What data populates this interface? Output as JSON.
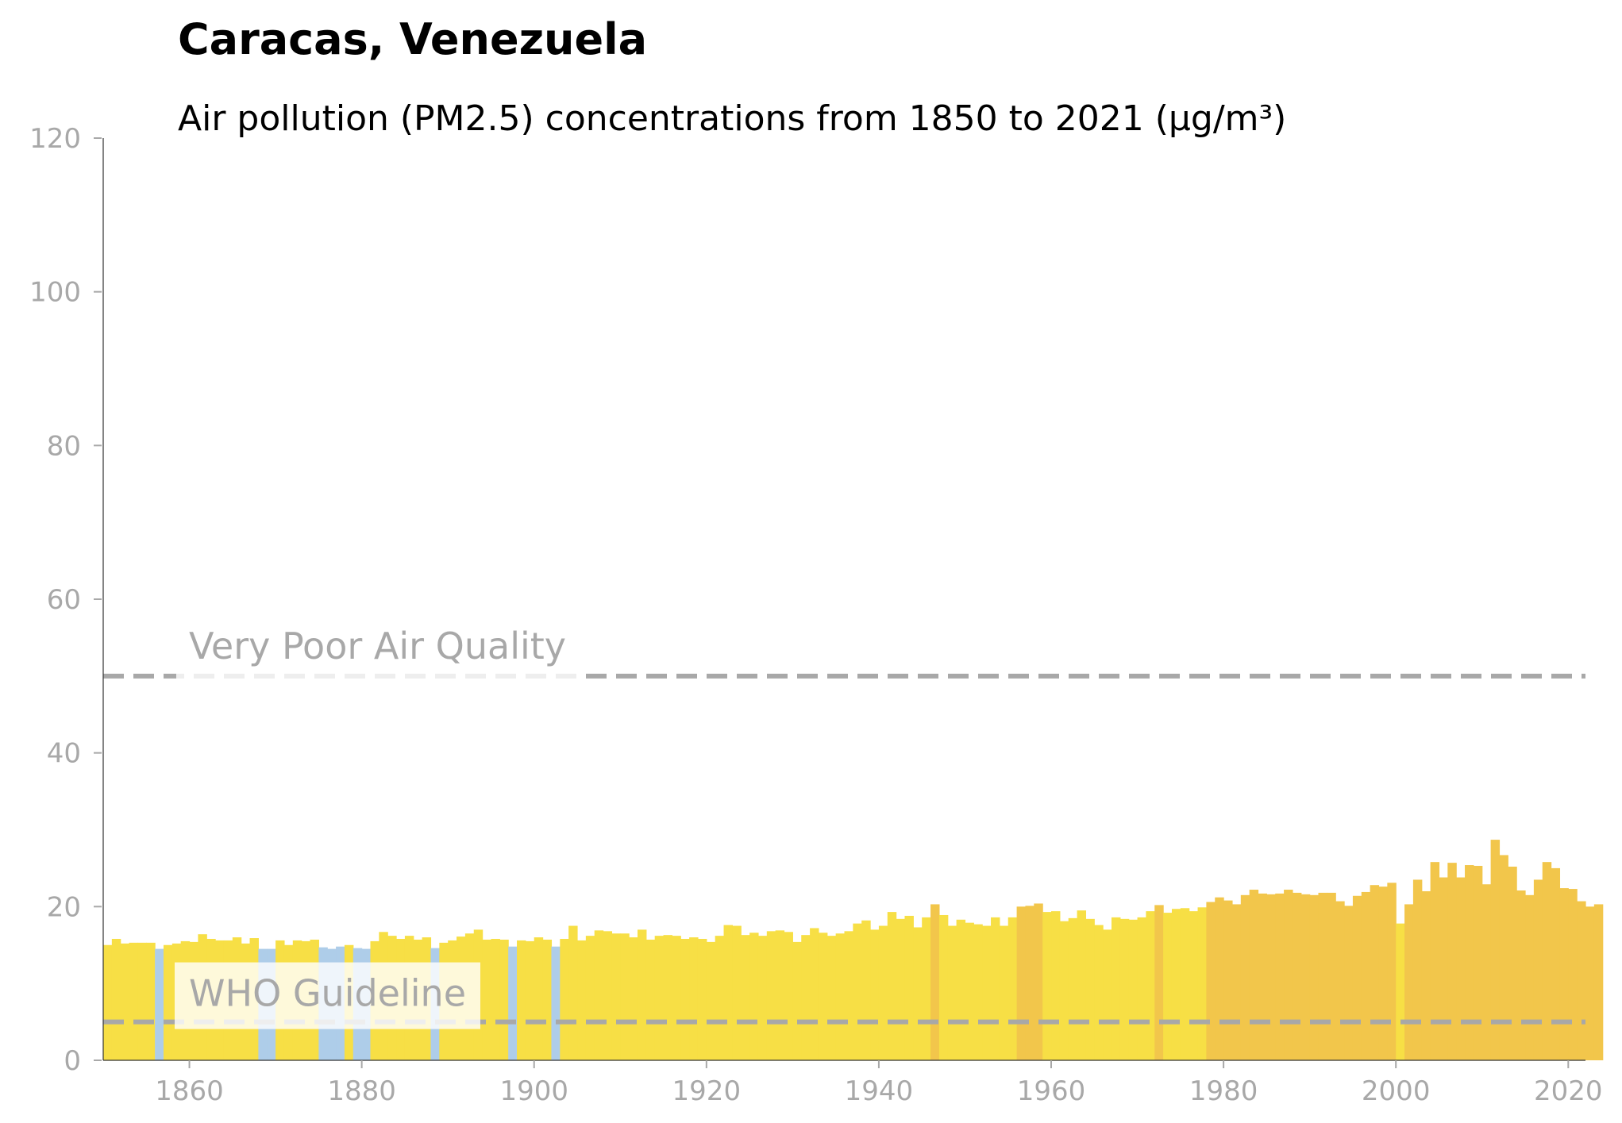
{
  "chart_data": {
    "type": "bar",
    "title": "Caracas, Venezuela",
    "subtitle": "Air pollution (PM2.5) concentrations from 1850 to 2021 (µg/m³)",
    "xlabel": "",
    "ylabel": "",
    "xlim": [
      1850,
      2022
    ],
    "ylim": [
      0,
      120
    ],
    "x_ticks": [
      1860,
      1880,
      1900,
      1920,
      1940,
      1960,
      1980,
      2000,
      2020
    ],
    "y_ticks": [
      0,
      20,
      40,
      60,
      80,
      100,
      120
    ],
    "grid": false,
    "start_year": 1850,
    "values": [
      15.0,
      15.8,
      15.2,
      15.3,
      15.3,
      15.3,
      14.5,
      15.0,
      15.2,
      15.5,
      15.4,
      16.4,
      15.8,
      15.6,
      15.6,
      16.0,
      15.2,
      15.9,
      14.5,
      14.5,
      15.6,
      15.0,
      15.6,
      15.5,
      15.7,
      14.7,
      14.5,
      14.8,
      15.0,
      14.6,
      14.5,
      15.5,
      16.7,
      16.2,
      15.8,
      16.2,
      15.7,
      16.0,
      14.6,
      15.3,
      15.6,
      16.1,
      16.5,
      17.0,
      15.7,
      15.8,
      15.7,
      14.8,
      15.6,
      15.5,
      16.0,
      15.7,
      14.8,
      15.8,
      17.5,
      15.6,
      16.2,
      16.9,
      16.8,
      16.5,
      16.5,
      16.0,
      17.0,
      15.7,
      16.2,
      16.3,
      16.2,
      15.8,
      16.0,
      15.8,
      15.4,
      16.2,
      17.6,
      17.5,
      16.3,
      16.6,
      16.2,
      16.8,
      16.9,
      16.7,
      15.4,
      16.3,
      17.2,
      16.6,
      16.2,
      16.5,
      16.8,
      17.8,
      18.2,
      17.0,
      17.5,
      19.3,
      18.4,
      18.8,
      17.3,
      18.6,
      20.3,
      18.9,
      17.5,
      18.3,
      17.9,
      17.7,
      17.5,
      18.6,
      17.5,
      18.6,
      20.0,
      20.1,
      20.4,
      19.3,
      19.4,
      18.1,
      18.5,
      19.5,
      18.4,
      17.6,
      17.0,
      18.6,
      18.4,
      18.3,
      18.6,
      19.4,
      20.2,
      19.2,
      19.7,
      19.8,
      19.4,
      19.9,
      20.6,
      21.2,
      20.8,
      20.3,
      21.5,
      22.2,
      21.7,
      21.6,
      21.7,
      22.2,
      21.8,
      21.6,
      21.5,
      21.8,
      21.8,
      20.7,
      20.1,
      21.4,
      21.9,
      22.8,
      22.6,
      23.1,
      17.8,
      20.3,
      23.5,
      22.0,
      25.8,
      23.8,
      25.7,
      23.8,
      25.4,
      25.3,
      22.9,
      28.7,
      26.7,
      25.2,
      22.1,
      21.5,
      23.5,
      25.8,
      25.0,
      22.4,
      22.3,
      20.7,
      20.0,
      20.3
    ],
    "category_colors": {
      "good": "#aecde9",
      "moderate": "#f7df45",
      "unhealthy": "#f2c64b"
    },
    "reference_lines": [
      {
        "label": "Very Poor Air Quality",
        "value": 50
      },
      {
        "label": "WHO Guideline",
        "value": 5
      }
    ]
  }
}
